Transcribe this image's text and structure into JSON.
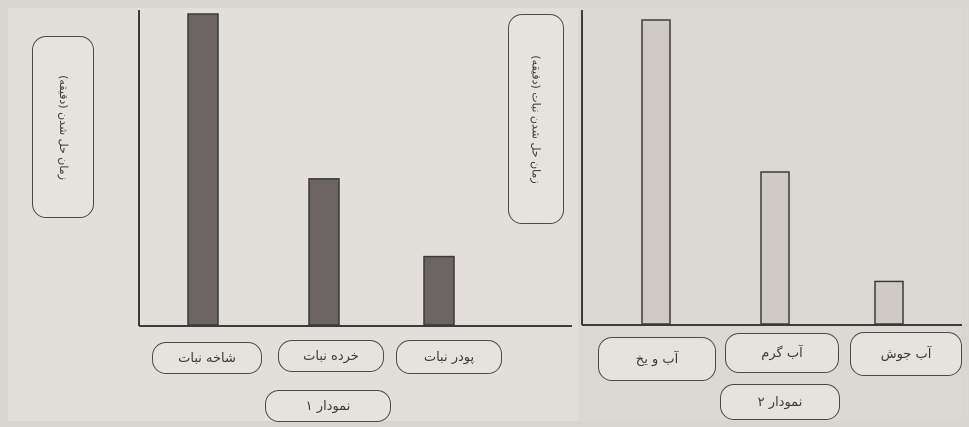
{
  "colors": {
    "paper": "#d9d6d2",
    "panel": "#e2dfdb",
    "axis": "#3c3c3c",
    "bar_dark": "#6b6462",
    "bar_light": "#cfcbc4"
  },
  "chart_data": [
    {
      "type": "bar",
      "title": "نمودار ۱",
      "ylabel": "زمان حل شدن (دقیقه)",
      "categories": [
        "شاخه نبات",
        "خرده نبات",
        "پودر نبات"
      ],
      "values": [
        100,
        47,
        22
      ],
      "ylim": [
        0,
        100
      ],
      "grid": false
    },
    {
      "type": "bar",
      "title": "نمودار ۲",
      "ylabel": "زمان حل شدن نبات (دقیقه)",
      "categories": [
        "آب و یخ",
        "آب گرم",
        "آب جوش"
      ],
      "values": [
        100,
        50,
        14
      ],
      "ylim": [
        0,
        100
      ],
      "grid": false
    }
  ]
}
